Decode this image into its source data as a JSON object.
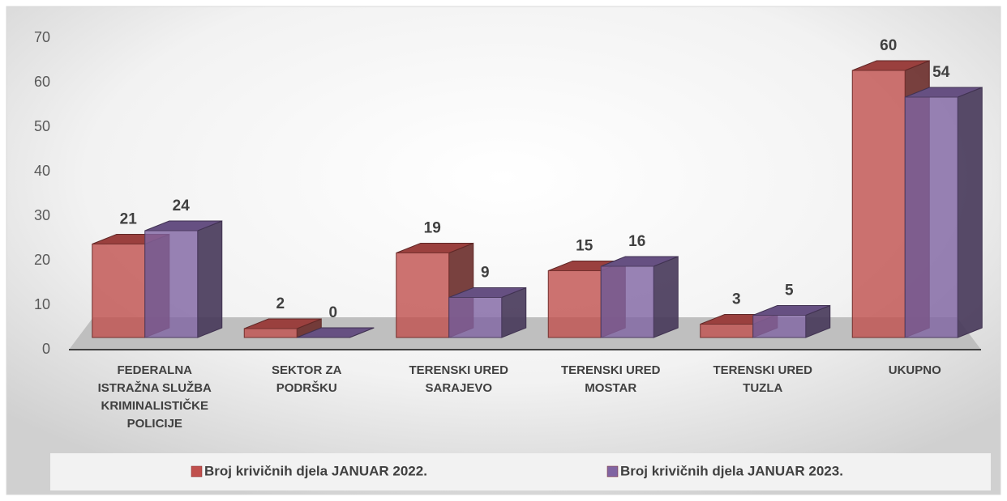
{
  "chart_data": {
    "type": "bar",
    "categories": [
      "FEDERALNA ISTRAŽNA SLUŽBA KRIMINALISTIČKE POLICIJE",
      "SEKTOR ZA PODRŠKU",
      "TERENSKI URED SARAJEVO",
      "TERENSKI URED MOSTAR",
      "TERENSKI URED TUZLA",
      "UKUPNO"
    ],
    "series": [
      {
        "name": "Broj krivičnih djela JANUAR 2022.",
        "color": "#c0504d",
        "values": [
          21,
          2,
          19,
          15,
          3,
          60
        ]
      },
      {
        "name": "Broj krivičnih djela JANUAR 2023.",
        "color": "#8064a2",
        "values": [
          24,
          0,
          9,
          16,
          5,
          54
        ]
      }
    ],
    "ylim": [
      0,
      70
    ],
    "yticks": [
      0,
      10,
      20,
      30,
      40,
      50,
      60,
      70
    ],
    "legend": "bottom"
  }
}
